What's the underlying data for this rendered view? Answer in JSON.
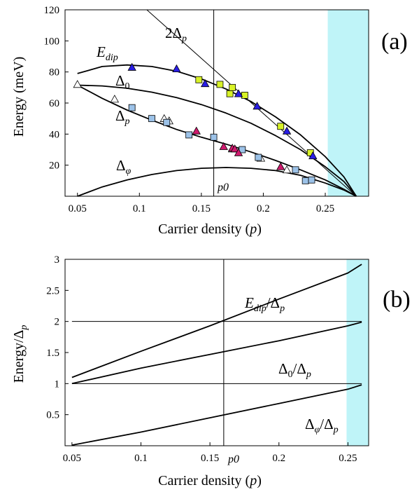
{
  "colors": {
    "shade": "#bff4f8",
    "blue_triangle": "#2a1ee6",
    "magenta_triangle": "#cf1a6e",
    "yellow_square": "#d8f227",
    "light_blue_square": "#9cc2e8",
    "open_triangle": "#ffffff"
  },
  "chart_data": [
    {
      "panel": "(a)",
      "type": "line",
      "xlabel_parts": [
        "Carrier density (",
        "p",
        ")"
      ],
      "ylabel": "Energy (meV)",
      "xlim": [
        0.04,
        0.285
      ],
      "ylim": [
        0,
        120
      ],
      "x_ticks": [
        "0.05",
        "0.1",
        "0.15",
        "0.2",
        "0.25"
      ],
      "y_ticks": [
        "20",
        "40",
        "60",
        "80",
        "100",
        "120"
      ],
      "shaded_region": [
        0.252,
        0.285
      ],
      "vertical_line": {
        "x": 0.16,
        "label": "p0"
      },
      "series": [
        {
          "label_main": "E",
          "label_sub": "dip",
          "x": [
            0.05,
            0.07,
            0.09,
            0.11,
            0.13,
            0.15,
            0.17,
            0.19,
            0.21,
            0.23,
            0.25,
            0.265,
            0.275
          ],
          "y": [
            79,
            83.5,
            84.5,
            83.5,
            80.5,
            75.5,
            69,
            61,
            51,
            39.5,
            25.5,
            12.5,
            0
          ]
        },
        {
          "label_main": "Δ",
          "label_sub": "0",
          "x": [
            0.05,
            0.07,
            0.09,
            0.11,
            0.13,
            0.15,
            0.17,
            0.19,
            0.21,
            0.23,
            0.25,
            0.265,
            0.275
          ],
          "y": [
            71.5,
            71,
            69.5,
            67,
            63.5,
            59,
            53.5,
            47,
            39,
            30,
            19,
            9.5,
            0
          ]
        },
        {
          "label_main": "Δ",
          "label_sub": "p",
          "x": [
            0.05,
            0.07,
            0.09,
            0.11,
            0.13,
            0.15,
            0.17,
            0.19,
            0.21,
            0.23,
            0.25,
            0.265,
            0.275
          ],
          "y": [
            71.5,
            63,
            55.5,
            49,
            43,
            38,
            33.5,
            28.5,
            23,
            17,
            10.5,
            4.5,
            0
          ]
        },
        {
          "label_main": "Δ",
          "label_sub": "φ",
          "x": [
            0.05,
            0.07,
            0.09,
            0.11,
            0.13,
            0.15,
            0.17,
            0.19,
            0.21,
            0.23,
            0.25,
            0.265,
            0.275
          ],
          "y": [
            0,
            6,
            10.5,
            14,
            16.5,
            18,
            18.5,
            18,
            16.5,
            13.5,
            8.5,
            4,
            0
          ]
        },
        {
          "label_main": "2Δ",
          "label_sub": "p",
          "x": [
            0.106,
            0.275
          ],
          "y": [
            120,
            0
          ]
        }
      ],
      "markers": {
        "blue_triangles": {
          "x": [
            0.094,
            0.13,
            0.153,
            0.18,
            0.195,
            0.219,
            0.24
          ],
          "y": [
            83,
            82,
            72.5,
            66,
            58,
            42,
            26
          ]
        },
        "yellow_squares": {
          "x": [
            0.148,
            0.165,
            0.173,
            0.175,
            0.185,
            0.214,
            0.238
          ],
          "y": [
            75,
            72,
            66,
            70,
            65,
            45,
            28
          ]
        },
        "magenta_triangles": {
          "x": [
            0.146,
            0.168,
            0.175,
            0.177,
            0.18,
            0.214
          ],
          "y": [
            42,
            32,
            31,
            30.5,
            28,
            19
          ]
        },
        "light_blue_squares": {
          "x": [
            0.094,
            0.11,
            0.122,
            0.14,
            0.16,
            0.183,
            0.196,
            0.226,
            0.234,
            0.239
          ],
          "y": [
            57,
            50,
            47.5,
            39.5,
            38,
            30,
            25,
            17,
            10,
            10.5
          ]
        },
        "open_triangles": {
          "x": [
            0.05,
            0.08,
            0.12,
            0.124,
            0.175,
            0.198,
            0.219
          ],
          "y": [
            72,
            62.5,
            50,
            48.5,
            30.5,
            24.5,
            17
          ]
        }
      }
    },
    {
      "panel": "(b)",
      "type": "line",
      "xlabel_parts": [
        "Carrier density (",
        "p",
        ")"
      ],
      "ylabel_main": "Energy/Δ",
      "ylabel_sub": "p",
      "xlim": [
        0.045,
        0.265
      ],
      "ylim": [
        0,
        3
      ],
      "x_ticks": [
        "0.05",
        "0.1",
        "0.15",
        "0.2",
        "0.25"
      ],
      "y_ticks": [
        "0.5",
        "1",
        "1.5",
        "2",
        "2.5",
        "3"
      ],
      "shaded_region": [
        0.249,
        0.265
      ],
      "vertical_line": {
        "x": 0.16,
        "label": "p0"
      },
      "horizontal_lines": [
        1,
        2
      ],
      "series": [
        {
          "label_main": "E",
          "label_sub": "dip",
          "label_tail": "/Δ",
          "label_sub2": "p",
          "x": [
            0.05,
            0.1,
            0.15,
            0.2,
            0.25,
            0.26
          ],
          "y": [
            1.1,
            1.52,
            1.93,
            2.36,
            2.78,
            2.92
          ]
        },
        {
          "label_main": "Δ",
          "label_sub": "0",
          "label_tail": "/Δ",
          "label_sub2": "p",
          "x": [
            0.05,
            0.1,
            0.15,
            0.2,
            0.25,
            0.26
          ],
          "y": [
            1.0,
            1.25,
            1.47,
            1.69,
            1.93,
            1.99
          ]
        },
        {
          "label_main": "Δ",
          "label_sub": "φ",
          "label_tail": "/Δ",
          "label_sub2": "p",
          "x": [
            0.05,
            0.1,
            0.15,
            0.2,
            0.25,
            0.26
          ],
          "y": [
            0.01,
            0.22,
            0.45,
            0.68,
            0.91,
            0.98
          ]
        }
      ]
    }
  ]
}
